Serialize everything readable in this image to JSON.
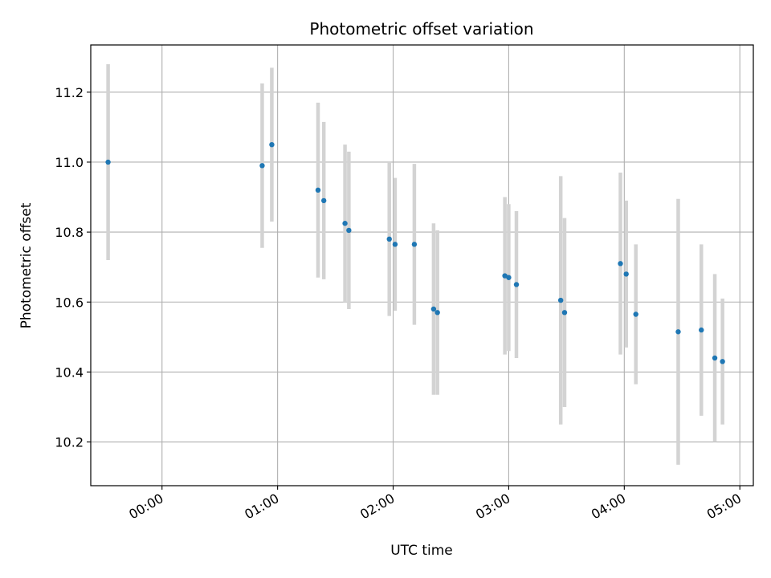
{
  "chart_data": {
    "type": "scatter",
    "title": "Photometric offset variation",
    "xlabel": "UTC time",
    "ylabel": "Photometric offset",
    "x_unit": "UTC",
    "xlim": [
      "23:23",
      "05:07"
    ],
    "ylim": [
      10.075,
      11.335
    ],
    "grid": true,
    "x_ticks": [
      "00:00",
      "01:00",
      "02:00",
      "03:00",
      "04:00",
      "05:00"
    ],
    "y_ticks": [
      "10.2",
      "10.4",
      "10.6",
      "10.8",
      "11.0",
      "11.2"
    ],
    "marker_color": "#1f77b4",
    "errorbar_color": "#d3d3d3",
    "points": [
      {
        "t": "23:32",
        "y": 11.0,
        "err": 0.28
      },
      {
        "t": "00:52",
        "y": 10.99,
        "err": 0.235
      },
      {
        "t": "00:57",
        "y": 11.05,
        "err": 0.22
      },
      {
        "t": "01:21",
        "y": 10.92,
        "err": 0.25
      },
      {
        "t": "01:24",
        "y": 10.89,
        "err": 0.225
      },
      {
        "t": "01:35",
        "y": 10.825,
        "err": 0.225
      },
      {
        "t": "01:37",
        "y": 10.805,
        "err": 0.225
      },
      {
        "t": "01:58",
        "y": 10.78,
        "err": 0.22
      },
      {
        "t": "02:01",
        "y": 10.765,
        "err": 0.19
      },
      {
        "t": "02:11",
        "y": 10.765,
        "err": 0.23
      },
      {
        "t": "02:21",
        "y": 10.58,
        "err": 0.245
      },
      {
        "t": "02:23",
        "y": 10.57,
        "err": 0.235
      },
      {
        "t": "02:58",
        "y": 10.675,
        "err": 0.225
      },
      {
        "t": "03:00",
        "y": 10.67,
        "err": 0.21
      },
      {
        "t": "03:04",
        "y": 10.65,
        "err": 0.21
      },
      {
        "t": "03:27",
        "y": 10.605,
        "err": 0.355
      },
      {
        "t": "03:29",
        "y": 10.57,
        "err": 0.27
      },
      {
        "t": "03:58",
        "y": 10.71,
        "err": 0.26
      },
      {
        "t": "04:01",
        "y": 10.68,
        "err": 0.21
      },
      {
        "t": "04:06",
        "y": 10.565,
        "err": 0.2
      },
      {
        "t": "04:28",
        "y": 10.515,
        "err": 0.38
      },
      {
        "t": "04:40",
        "y": 10.52,
        "err": 0.245
      },
      {
        "t": "04:47",
        "y": 10.44,
        "err": 0.24
      },
      {
        "t": "04:51",
        "y": 10.43,
        "err": 0.18
      }
    ]
  }
}
